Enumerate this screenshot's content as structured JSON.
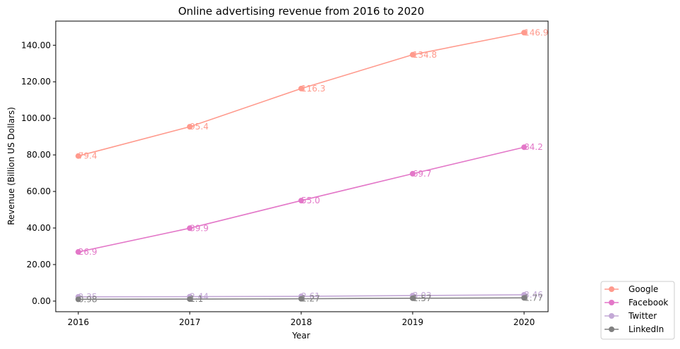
{
  "chart_data": {
    "type": "line",
    "title": "Online advertising revenue from 2016 to 2020",
    "xlabel": "Year",
    "ylabel": "Revenue (Billion US Dollars)",
    "categories": [
      "2016",
      "2017",
      "2018",
      "2019",
      "2020"
    ],
    "y_ticks": [
      "0.00",
      "20.00",
      "40.00",
      "60.00",
      "80.00",
      "100.00",
      "120.00",
      "140.00"
    ],
    "ylim": [
      -5.8,
      153.2
    ],
    "grid": false,
    "legend_position": "bottom-right, outside plot area",
    "series": [
      {
        "name": "Google",
        "color": "#FF9A8D",
        "values": [
          79.4,
          95.4,
          116.3,
          134.8,
          146.9
        ],
        "labels": [
          "79.4",
          "95.4",
          "116.3",
          "134.8",
          "146.9"
        ]
      },
      {
        "name": "Facebook",
        "color": "#E377C8",
        "values": [
          26.9,
          39.9,
          55.0,
          69.7,
          84.2
        ],
        "labels": [
          "26.9",
          "39.9",
          "55.0",
          "69.7",
          "84.2"
        ]
      },
      {
        "name": "Twitter",
        "color": "#C3A8D6",
        "values": [
          2.35,
          2.44,
          2.61,
          3.03,
          3.46
        ],
        "labels": [
          "2.35",
          "2.44",
          "2.61",
          "3.03",
          "3.46"
        ]
      },
      {
        "name": "LinkedIn",
        "color": "#808080",
        "values": [
          0.98,
          1.1,
          1.27,
          1.57,
          1.77
        ],
        "labels": [
          "0.98",
          "1.1",
          "1.27",
          "1.57",
          "1.77"
        ]
      }
    ]
  }
}
